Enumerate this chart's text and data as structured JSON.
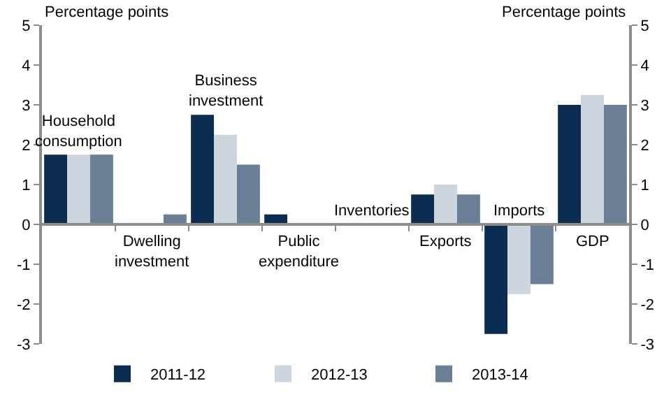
{
  "chart_data": {
    "type": "bar",
    "categories": [
      "Household consumption",
      "Dwelling investment",
      "Business investment",
      "Public expenditure",
      "Inventories",
      "Exports",
      "Imports",
      "GDP"
    ],
    "series": [
      {
        "name": "2011-12",
        "color": "#0b2d52",
        "values": [
          1.75,
          0,
          2.75,
          0.25,
          0,
          0.75,
          -2.75,
          3.0
        ]
      },
      {
        "name": "2012-13",
        "color": "#cdd5df",
        "values": [
          1.75,
          0,
          2.25,
          0,
          0,
          1.0,
          -1.75,
          3.25
        ]
      },
      {
        "name": "2013-14",
        "color": "#687f96",
        "values": [
          1.75,
          0.25,
          1.5,
          0,
          0,
          0.75,
          -1.5,
          3.0
        ]
      }
    ],
    "ylabel": "Percentage points",
    "y2label": "Percentage points",
    "ylim": [
      -3,
      5
    ],
    "yticks": [
      -3,
      -2,
      -1,
      0,
      1,
      2,
      3,
      4,
      5
    ],
    "y2lim": [
      -3,
      5
    ],
    "y2ticks": [
      -3,
      -2,
      -1,
      0,
      1,
      2,
      3,
      4,
      5
    ],
    "grid": false,
    "legend": "bottom"
  }
}
